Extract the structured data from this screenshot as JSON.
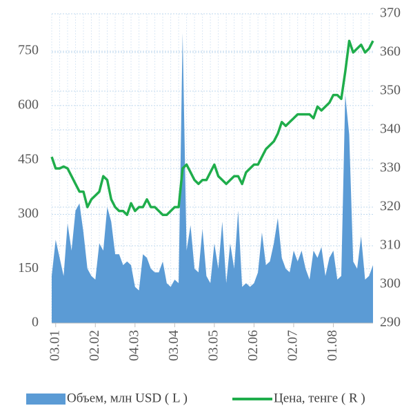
{
  "chart_data": {
    "type": "area-line",
    "categories": [
      null,
      "03.01",
      null,
      null,
      null,
      null,
      null,
      null,
      null,
      null,
      null,
      "02.02",
      null,
      null,
      null,
      null,
      null,
      null,
      null,
      null,
      null,
      "04.03",
      null,
      null,
      null,
      null,
      null,
      null,
      null,
      null,
      null,
      "03.04",
      null,
      null,
      null,
      null,
      null,
      null,
      null,
      null,
      null,
      "03.05",
      null,
      null,
      null,
      null,
      null,
      null,
      null,
      null,
      null,
      "02.06",
      null,
      null,
      null,
      null,
      null,
      null,
      null,
      null,
      null,
      "02.07",
      null,
      null,
      null,
      null,
      null,
      null,
      null,
      null,
      null,
      "01.08",
      null,
      null,
      null,
      null,
      null,
      null,
      null,
      null,
      null,
      null
    ],
    "series": [
      {
        "name": "Объем, млн USD ( L )",
        "color": "#5b9bd5",
        "axis": "y",
        "values": [
          130,
          230,
          180,
          130,
          275,
          200,
          310,
          330,
          250,
          150,
          130,
          120,
          220,
          200,
          320,
          280,
          190,
          190,
          160,
          170,
          160,
          100,
          90,
          190,
          180,
          150,
          140,
          140,
          170,
          110,
          100,
          120,
          110,
          800,
          200,
          270,
          150,
          140,
          260,
          130,
          110,
          220,
          150,
          280,
          110,
          220,
          150,
          310,
          100,
          110,
          100,
          110,
          140,
          250,
          160,
          170,
          220,
          290,
          180,
          150,
          140,
          200,
          170,
          200,
          150,
          120,
          200,
          180,
          210,
          130,
          180,
          200,
          120,
          130,
          630,
          520,
          170,
          150,
          240,
          120,
          130,
          160
        ]
      },
      {
        "name": "Цена, тенге ( R )",
        "color": "#1fad4b",
        "axis": "y2",
        "values": [
          333,
          330,
          330,
          330.5,
          330,
          328,
          326,
          324,
          324,
          320,
          322,
          323,
          324,
          328,
          327,
          322,
          320,
          319,
          319,
          318,
          321,
          319,
          320,
          320,
          322,
          320,
          320,
          319,
          318,
          318,
          319,
          320,
          320,
          330,
          331,
          329,
          327,
          326,
          327,
          327,
          329,
          331,
          328,
          327,
          326,
          327,
          328,
          328,
          326,
          329,
          330,
          331,
          331,
          333,
          335,
          336,
          337,
          339,
          342,
          341,
          342,
          343,
          344,
          344,
          344,
          344,
          343,
          346,
          345,
          346,
          347,
          349,
          349,
          348,
          355,
          363,
          360,
          361,
          362,
          360,
          361,
          363
        ]
      }
    ],
    "ylim": [
      0,
      853
    ],
    "yticks": [
      0,
      150,
      300,
      450,
      600,
      750
    ],
    "y2lim": [
      290,
      370
    ],
    "y2ticks": [
      290,
      300,
      310,
      320,
      330,
      340,
      350,
      360,
      370
    ],
    "grid": true,
    "legend": "bottom"
  }
}
